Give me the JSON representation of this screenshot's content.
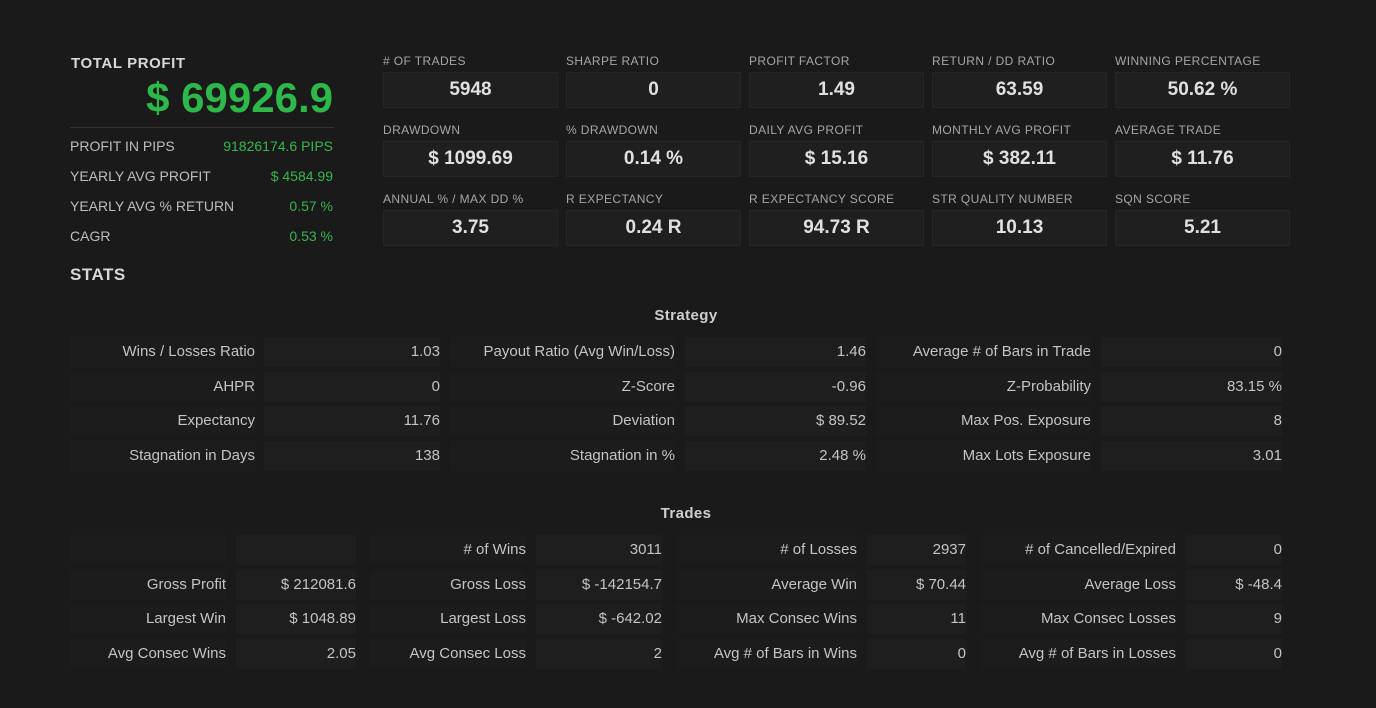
{
  "summary": {
    "total_profit_label": "TOTAL PROFIT",
    "total_profit_value": "$ 69926.9",
    "rows": [
      {
        "label": "PROFIT IN PIPS",
        "value": "91826174.6 PIPS"
      },
      {
        "label": "YEARLY AVG PROFIT",
        "value": "$ 4584.99"
      },
      {
        "label": "YEARLY AVG % RETURN",
        "value": "0.57 %"
      },
      {
        "label": "CAGR",
        "value": "0.53 %"
      }
    ]
  },
  "metrics": [
    {
      "label": "# OF TRADES",
      "value": "5948"
    },
    {
      "label": "SHARPE RATIO",
      "value": "0"
    },
    {
      "label": "PROFIT FACTOR",
      "value": "1.49"
    },
    {
      "label": "RETURN / DD RATIO",
      "value": "63.59"
    },
    {
      "label": "WINNING PERCENTAGE",
      "value": "50.62 %"
    },
    {
      "label": "DRAWDOWN",
      "value": "$ 1099.69"
    },
    {
      "label": "% DRAWDOWN",
      "value": "0.14 %"
    },
    {
      "label": "DAILY AVG PROFIT",
      "value": "$ 15.16"
    },
    {
      "label": "MONTHLY AVG PROFIT",
      "value": "$ 382.11"
    },
    {
      "label": "AVERAGE TRADE",
      "value": "$ 11.76"
    },
    {
      "label": "ANNUAL % / MAX DD %",
      "value": "3.75"
    },
    {
      "label": "R EXPECTANCY",
      "value": "0.24 R"
    },
    {
      "label": "R EXPECTANCY SCORE",
      "value": "94.73 R"
    },
    {
      "label": "STR QUALITY NUMBER",
      "value": "10.13"
    },
    {
      "label": "SQN SCORE",
      "value": "5.21"
    }
  ],
  "stats_title": "STATS",
  "strategy": {
    "title": "Strategy",
    "rows": [
      [
        [
          "Wins / Losses Ratio",
          "1.03"
        ],
        [
          "Payout Ratio (Avg Win/Loss)",
          "1.46"
        ],
        [
          "Average # of Bars in Trade",
          "0"
        ]
      ],
      [
        [
          "AHPR",
          "0"
        ],
        [
          "Z-Score",
          "-0.96"
        ],
        [
          "Z-Probability",
          "83.15 %"
        ]
      ],
      [
        [
          "Expectancy",
          "11.76"
        ],
        [
          "Deviation",
          "$ 89.52"
        ],
        [
          "Max Pos. Exposure",
          "8"
        ]
      ],
      [
        [
          "Stagnation in Days",
          "138"
        ],
        [
          "Stagnation in %",
          "2.48 %"
        ],
        [
          "Max Lots Exposure",
          "3.01"
        ]
      ]
    ]
  },
  "trades": {
    "title": "Trades",
    "rows": [
      [
        [
          "",
          ""
        ],
        [
          "# of Wins",
          "3011"
        ],
        [
          "# of Losses",
          "2937"
        ],
        [
          "# of Cancelled/Expired",
          "0"
        ]
      ],
      [
        [
          "Gross Profit",
          "$ 212081.6"
        ],
        [
          "Gross Loss",
          "$ -142154.7"
        ],
        [
          "Average Win",
          "$ 70.44"
        ],
        [
          "Average Loss",
          "$ -48.4"
        ]
      ],
      [
        [
          "Largest Win",
          "$ 1048.89"
        ],
        [
          "Largest Loss",
          "$ -642.02"
        ],
        [
          "Max Consec Wins",
          "11"
        ],
        [
          "Max Consec Losses",
          "9"
        ]
      ],
      [
        [
          "Avg Consec Wins",
          "2.05"
        ],
        [
          "Avg Consec Loss",
          "2"
        ],
        [
          "Avg # of Bars in Wins",
          "0"
        ],
        [
          "Avg # of Bars in Losses",
          "0"
        ]
      ]
    ]
  }
}
